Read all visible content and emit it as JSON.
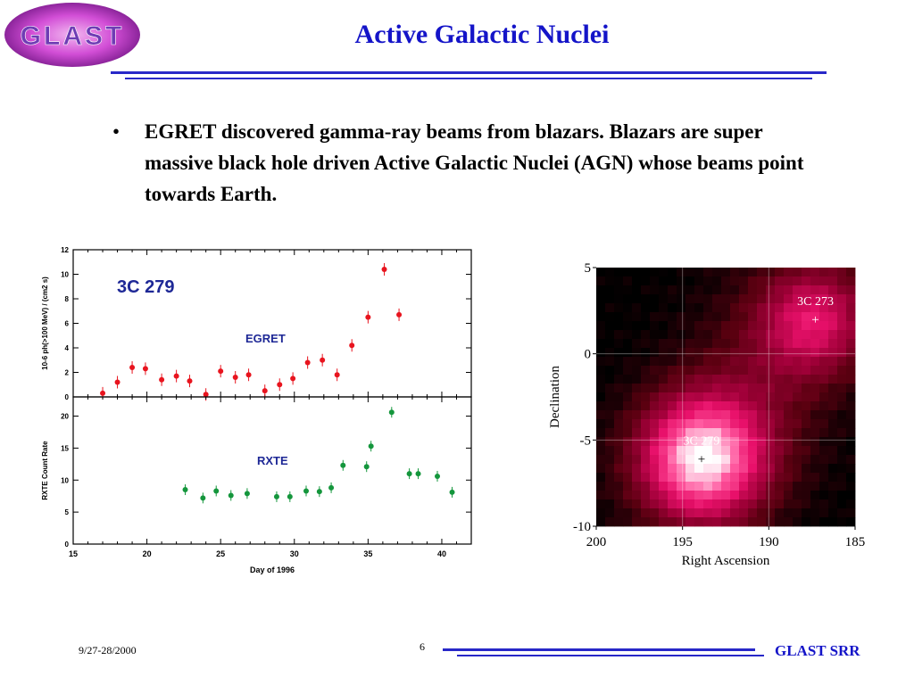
{
  "logo": {
    "text": "GLAST"
  },
  "slide": {
    "title": "Active Galactic Nuclei",
    "bullet": "EGRET discovered gamma-ray beams from blazars. Blazars are super massive black hole driven Active Galactic Nuclei (AGN) whose beams point towards Earth.",
    "bullet_symbol": "•"
  },
  "footer": {
    "date": "9/27-28/2000",
    "page": "6",
    "brand": "GLAST SRR"
  },
  "colors": {
    "accent": "#1414c8",
    "egret": "#e8141e",
    "rxte": "#14963c",
    "chart_label": "#1e2896"
  },
  "chart_data": [
    {
      "type": "scatter",
      "title": "3C 279",
      "xlabel": "Day of 1996",
      "xlim": [
        15,
        42
      ],
      "x_ticks": [
        "15",
        "20",
        "25",
        "30",
        "35",
        "40"
      ],
      "panels": [
        {
          "name": "EGRET",
          "ylabel": "10-6 ph(>100 MeV) / (cm2 s)",
          "ylim": [
            0,
            12
          ],
          "y_ticks": [
            "0",
            "2",
            "4",
            "6",
            "8",
            "10",
            "12"
          ],
          "x": [
            17.0,
            18.0,
            19.0,
            19.9,
            21.0,
            22.0,
            22.9,
            24.0,
            25.0,
            26.0,
            26.9,
            28.0,
            29.0,
            29.9,
            30.9,
            31.9,
            32.9,
            33.9,
            35.0,
            36.1,
            37.1
          ],
          "y": [
            0.3,
            1.2,
            2.4,
            2.3,
            1.4,
            1.7,
            1.3,
            0.2,
            2.1,
            1.6,
            1.8,
            0.5,
            1.0,
            1.5,
            2.8,
            3.0,
            1.8,
            4.2,
            6.5,
            10.4,
            6.7
          ]
        },
        {
          "name": "RXTE",
          "ylabel": "RXTE Count Rate",
          "ylim": [
            0,
            23
          ],
          "y_ticks": [
            "0",
            "5",
            "10",
            "15",
            "20"
          ],
          "x": [
            22.6,
            23.8,
            24.7,
            25.7,
            26.8,
            28.8,
            29.7,
            30.8,
            31.7,
            32.5,
            33.3,
            34.9,
            35.2,
            36.6,
            37.8,
            38.4,
            39.7,
            40.7
          ],
          "y": [
            8.5,
            7.2,
            8.3,
            7.6,
            7.9,
            7.4,
            7.4,
            8.3,
            8.2,
            8.8,
            12.3,
            12.1,
            15.3,
            20.6,
            11.0,
            11.0,
            10.6,
            8.1
          ]
        }
      ]
    },
    {
      "type": "heatmap",
      "xlabel": "Right Ascension",
      "ylabel": "Declination",
      "xlim": [
        200,
        185
      ],
      "ylim": [
        -10,
        5
      ],
      "x_ticks": [
        "200",
        "195",
        "190",
        "185"
      ],
      "y_ticks": [
        "5",
        "0",
        "-5",
        "-10"
      ],
      "sources": [
        {
          "name": "3C 279",
          "ra": 193.9,
          "dec": -6.1,
          "intensity": 1.0
        },
        {
          "name": "3C 273",
          "ra": 187.3,
          "dec": 2.0,
          "intensity": 0.55
        }
      ],
      "colormap": [
        "#000000",
        "#5a0010",
        "#a00038",
        "#e8106a",
        "#ff5aa0",
        "#ffffff"
      ]
    }
  ]
}
